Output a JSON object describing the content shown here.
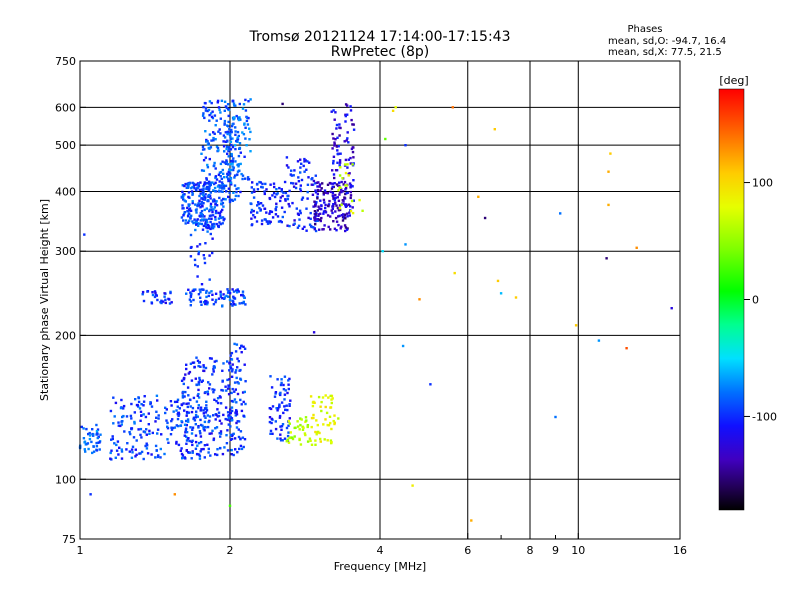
{
  "chart_data": {
    "type": "scatter",
    "title": "Tromsø 20121124 17:14:00-17:15:43",
    "subtitle": "RwPretec (8p)",
    "stats": {
      "title": "Phases",
      "line1": "mean, sd,O: -94.7, 16.4",
      "line2": "mean, sd,X:  77.5, 21.5"
    },
    "xlabel": "Frequency [MHz]",
    "ylabel": "Stationary phase Virtual Height [km]",
    "x_scale": "log",
    "y_scale": "log",
    "xlim": [
      1,
      16
    ],
    "ylim": [
      75,
      750
    ],
    "x_ticks": [
      1,
      2,
      4,
      6,
      8,
      10,
      16
    ],
    "x_ticks_labels": [
      "1",
      "2",
      "4",
      "6",
      "8",
      "10",
      "16"
    ],
    "x_minor_ticks": [
      7,
      9
    ],
    "x_minor_labels": [
      "",
      "9"
    ],
    "y_ticks": [
      75,
      100,
      200,
      300,
      400,
      500,
      600,
      750
    ],
    "y_ticks_labels": [
      "75",
      "100",
      "200",
      "300",
      "400",
      "500",
      "600",
      "750"
    ],
    "grid_x": [
      2,
      4,
      6,
      8,
      10
    ],
    "grid_y": [
      100,
      200,
      300,
      400,
      500,
      600
    ],
    "colorbar": {
      "label": "[deg]",
      "range": [
        -180,
        180
      ],
      "ticks": [
        100,
        0,
        -100
      ],
      "ticks_labels": [
        "100",
        "0",
        "-100"
      ]
    },
    "clusters": [
      {
        "f": [
          1.0,
          1.1
        ],
        "h": [
          112,
          130
        ],
        "phase": -85,
        "n": 45
      },
      {
        "f": [
          1.15,
          1.8
        ],
        "h": [
          110,
          150
        ],
        "phase": -95,
        "n": 230
      },
      {
        "f": [
          1.6,
          2.1
        ],
        "h": [
          112,
          180
        ],
        "phase": -100,
        "n": 230
      },
      {
        "f": [
          2.0,
          2.15
        ],
        "h": [
          115,
          195
        ],
        "phase": -95,
        "n": 60
      },
      {
        "f": [
          2.4,
          2.65
        ],
        "h": [
          120,
          165
        ],
        "phase": -100,
        "n": 70
      },
      {
        "f": [
          2.6,
          2.9
        ],
        "h": [
          118,
          135
        ],
        "phase": 60,
        "n": 35
      },
      {
        "f": [
          2.9,
          3.3
        ],
        "h": [
          118,
          150
        ],
        "phase": 80,
        "n": 55
      },
      {
        "f": [
          1.33,
          1.53
        ],
        "h": [
          233,
          248
        ],
        "phase": -100,
        "n": 30
      },
      {
        "f": [
          1.63,
          2.15
        ],
        "h": [
          230,
          250
        ],
        "phase": -95,
        "n": 90
      },
      {
        "f": [
          1.65,
          1.85
        ],
        "h": [
          250,
          345
        ],
        "phase": -95,
        "n": 30
      },
      {
        "f": [
          1.6,
          1.95
        ],
        "h": [
          335,
          420
        ],
        "phase": -95,
        "n": 230
      },
      {
        "f": [
          1.75,
          2.1
        ],
        "h": [
          380,
          620
        ],
        "phase": -90,
        "n": 220
      },
      {
        "f": [
          1.95,
          2.2
        ],
        "h": [
          420,
          640
        ],
        "phase": -85,
        "n": 80
      },
      {
        "f": [
          2.2,
          2.6
        ],
        "h": [
          340,
          420
        ],
        "phase": -100,
        "n": 90
      },
      {
        "f": [
          2.6,
          3.0
        ],
        "h": [
          330,
          480
        ],
        "phase": -105,
        "n": 90
      },
      {
        "f": [
          2.95,
          3.5
        ],
        "h": [
          330,
          420
        ],
        "phase": -130,
        "n": 140
      },
      {
        "f": [
          3.2,
          3.55
        ],
        "h": [
          360,
          610
        ],
        "phase": -120,
        "n": 100
      },
      {
        "f": [
          3.3,
          3.7
        ],
        "h": [
          360,
          460
        ],
        "phase": 70,
        "n": 20
      }
    ],
    "points": [
      {
        "f": 1.02,
        "h": 325,
        "phase": -100
      },
      {
        "f": 1.05,
        "h": 93,
        "phase": -100
      },
      {
        "f": 1.55,
        "h": 93,
        "phase": 130
      },
      {
        "f": 2.0,
        "h": 88,
        "phase": 20
      },
      {
        "f": 2.55,
        "h": 610,
        "phase": -150
      },
      {
        "f": 2.95,
        "h": 203,
        "phase": -120
      },
      {
        "f": 4.05,
        "h": 300,
        "phase": -50
      },
      {
        "f": 4.1,
        "h": 515,
        "phase": 30
      },
      {
        "f": 4.25,
        "h": 590,
        "phase": 100
      },
      {
        "f": 4.3,
        "h": 600,
        "phase": 80
      },
      {
        "f": 4.45,
        "h": 190,
        "phase": -70
      },
      {
        "f": 4.5,
        "h": 500,
        "phase": -100
      },
      {
        "f": 4.5,
        "h": 310,
        "phase": -70
      },
      {
        "f": 4.65,
        "h": 97,
        "phase": 90
      },
      {
        "f": 4.8,
        "h": 238,
        "phase": 130
      },
      {
        "f": 5.05,
        "h": 158,
        "phase": -100
      },
      {
        "f": 5.6,
        "h": 600,
        "phase": 140
      },
      {
        "f": 5.65,
        "h": 270,
        "phase": 100
      },
      {
        "f": 6.1,
        "h": 82,
        "phase": 120
      },
      {
        "f": 6.3,
        "h": 390,
        "phase": 120
      },
      {
        "f": 6.5,
        "h": 352,
        "phase": -150
      },
      {
        "f": 6.8,
        "h": 540,
        "phase": 110
      },
      {
        "f": 6.9,
        "h": 260,
        "phase": 110
      },
      {
        "f": 7.0,
        "h": 245,
        "phase": -60
      },
      {
        "f": 7.5,
        "h": 240,
        "phase": 110
      },
      {
        "f": 9.0,
        "h": 135,
        "phase": -80
      },
      {
        "f": 9.2,
        "h": 360,
        "phase": -80
      },
      {
        "f": 9.9,
        "h": 210,
        "phase": 110
      },
      {
        "f": 11.0,
        "h": 195,
        "phase": -70
      },
      {
        "f": 11.4,
        "h": 290,
        "phase": -150
      },
      {
        "f": 11.5,
        "h": 440,
        "phase": 120
      },
      {
        "f": 11.5,
        "h": 375,
        "phase": 120
      },
      {
        "f": 11.6,
        "h": 480,
        "phase": 110
      },
      {
        "f": 12.5,
        "h": 188,
        "phase": 150
      },
      {
        "f": 13.1,
        "h": 305,
        "phase": 130
      },
      {
        "f": 15.4,
        "h": 228,
        "phase": -120
      }
    ]
  }
}
